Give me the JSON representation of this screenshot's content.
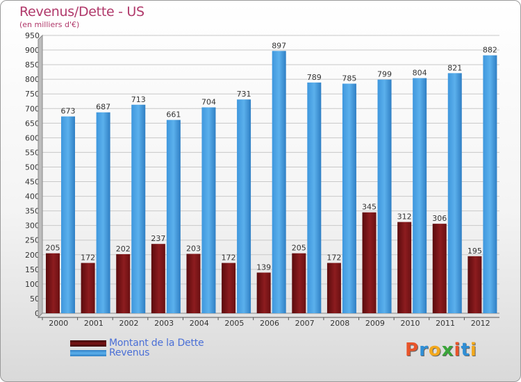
{
  "header": {
    "title": "Revenus/Dette - US",
    "subtitle": "(en milliers d'€)"
  },
  "chart_data": {
    "type": "bar",
    "categories": [
      "2000",
      "2001",
      "2002",
      "2003",
      "2004",
      "2005",
      "2006",
      "2007",
      "2008",
      "2009",
      "2010",
      "2011",
      "2012"
    ],
    "series": [
      {
        "name": "Montant de la Dette",
        "color": "#7a1416",
        "values": [
          205,
          172,
          202,
          237,
          203,
          172,
          139,
          205,
          172,
          345,
          312,
          306,
          195
        ]
      },
      {
        "name": "Revenus",
        "color": "#4aa3e6",
        "values": [
          673,
          687,
          713,
          661,
          704,
          731,
          897,
          789,
          785,
          799,
          804,
          821,
          882
        ]
      }
    ],
    "y_ticks": [
      0,
      50,
      100,
      150,
      200,
      250,
      300,
      350,
      400,
      450,
      500,
      550,
      600,
      650,
      700,
      750,
      800,
      850,
      900,
      950
    ],
    "ylim": [
      0,
      950
    ],
    "grid": true,
    "legend_position": "bottom-left"
  },
  "legend": [
    {
      "label": "Montant de la Dette",
      "color": "#7a1416"
    },
    {
      "label": "Revenus",
      "color": "#4aa3e6"
    }
  ],
  "logo": {
    "letters": [
      "P",
      "r",
      "o",
      "x",
      "i",
      "t",
      "i"
    ],
    "colors": [
      "#e8542a",
      "#2f8fd6",
      "#f2a81d",
      "#3aa53a",
      "#e8542a",
      "#2f8fd6",
      "#f2a81d"
    ]
  }
}
